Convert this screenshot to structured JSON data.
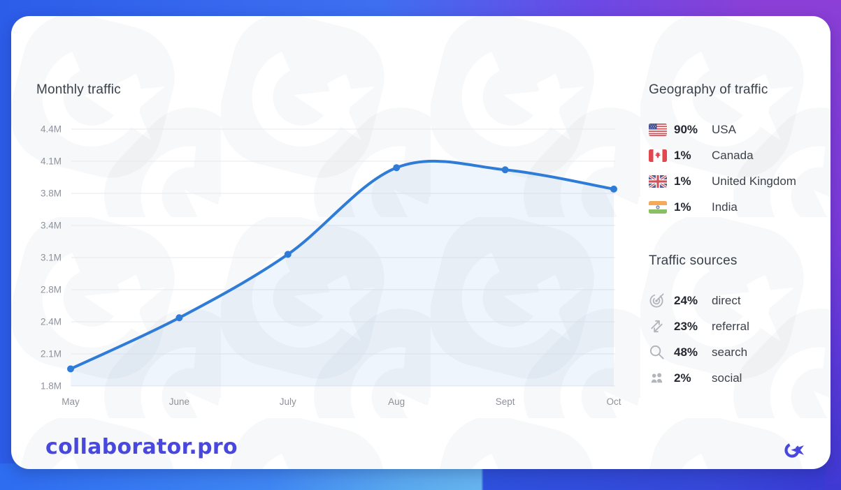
{
  "brand": {
    "wordmark": "collaborator.pro",
    "accent_color": "#4848df"
  },
  "chart_data": {
    "type": "line",
    "title": "Monthly traffic",
    "x": [
      "May",
      "June",
      "July",
      "Aug",
      "Sept",
      "Oct"
    ],
    "series": [
      {
        "name": "Monthly traffic",
        "values_millions": [
          1.96,
          2.45,
          3.13,
          4.04,
          4.02,
          3.84
        ]
      }
    ],
    "y_ticks": [
      "4.4M",
      "4.1M",
      "3.8M",
      "3.4M",
      "3.1M",
      "2.8M",
      "2.4M",
      "2.1M",
      "1.8M"
    ],
    "y_tick_values": [
      4.4,
      4.1,
      3.8,
      3.4,
      3.1,
      2.8,
      2.4,
      2.1,
      1.8
    ],
    "ylim_millions": [
      1.8,
      4.4
    ],
    "grid": true,
    "legend": false,
    "line_color": "#2e7cd8",
    "fill_color": "rgba(46,124,216,0.08)",
    "grid_color": "#e9e9ec",
    "tick_color": "#8d929b"
  },
  "geography": {
    "title": "Geography of traffic",
    "items": [
      {
        "flag": "usa-flag-icon",
        "percent": "90%",
        "label": "USA"
      },
      {
        "flag": "canada-flag-icon",
        "percent": "1%",
        "label": "Canada"
      },
      {
        "flag": "uk-flag-icon",
        "percent": "1%",
        "label": "United Kingdom"
      },
      {
        "flag": "india-flag-icon",
        "percent": "1%",
        "label": "India"
      }
    ]
  },
  "sources": {
    "title": "Traffic sources",
    "items": [
      {
        "icon": "target-icon",
        "percent": "24%",
        "label": "direct"
      },
      {
        "icon": "referral-arrows-icon",
        "percent": "23%",
        "label": "referral"
      },
      {
        "icon": "search-icon",
        "percent": "48%",
        "label": "search"
      },
      {
        "icon": "social-people-icon",
        "percent": "2%",
        "label": "social"
      }
    ]
  }
}
